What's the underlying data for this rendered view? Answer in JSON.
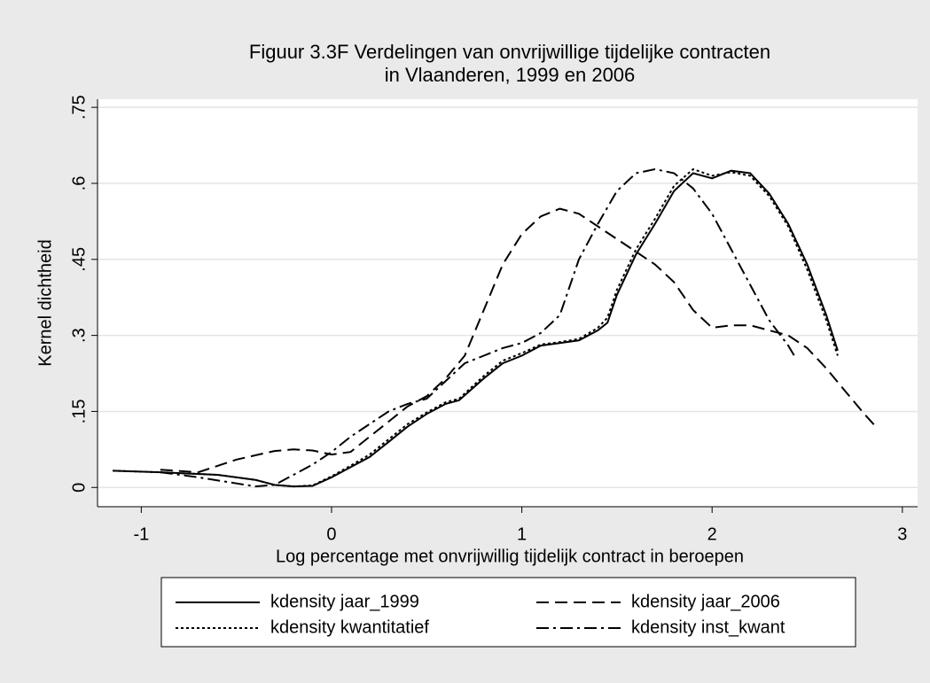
{
  "chart_data": {
    "type": "line",
    "title": [
      "Figuur 3.3F Verdelingen van onvrijwillige tijdelijke contracten",
      "in Vlaanderen, 1999 en 2006"
    ],
    "xlabel": "Log percentage met onvrijwillig tijdelijk contract in beroepen",
    "ylabel": "Kernel dichtheid",
    "xlim": [
      -1.23,
      3.08
    ],
    "xticks": [
      -1,
      0,
      1,
      2,
      3
    ],
    "ylim": [
      -0.038,
      0.766
    ],
    "yticks": [
      0,
      {
        "value": 0.15,
        "label": ".15"
      },
      {
        "value": 0.3,
        "label": ".3"
      },
      {
        "value": 0.45,
        "label": ".45"
      },
      {
        "value": 0.6,
        "label": ".6"
      },
      {
        "value": 0.75,
        "label": ".75"
      }
    ],
    "grid": true,
    "legend": "bottom",
    "series": [
      {
        "name": "kdensity jaar_1999",
        "color": "#000000",
        "dash": "solid",
        "x": [
          -1.15,
          -0.9,
          -0.6,
          -0.4,
          -0.3,
          -0.2,
          -0.1,
          0,
          0.1,
          0.2,
          0.3,
          0.4,
          0.5,
          0.6,
          0.67,
          0.8,
          0.9,
          1.0,
          1.1,
          1.2,
          1.3,
          1.4,
          1.45,
          1.5,
          1.6,
          1.7,
          1.8,
          1.9,
          2.0,
          2.1,
          2.2,
          2.3,
          2.4,
          2.5,
          2.6,
          2.66
        ],
        "values": [
          0.033,
          0.03,
          0.025,
          0.015,
          0.005,
          0.002,
          0.003,
          0.02,
          0.04,
          0.06,
          0.09,
          0.12,
          0.145,
          0.165,
          0.172,
          0.215,
          0.245,
          0.26,
          0.28,
          0.285,
          0.29,
          0.31,
          0.325,
          0.38,
          0.46,
          0.52,
          0.585,
          0.62,
          0.61,
          0.625,
          0.62,
          0.58,
          0.52,
          0.44,
          0.34,
          0.27
        ]
      },
      {
        "name": "kdensity jaar_2006",
        "color": "#000000",
        "dash": "dashed",
        "x": [
          -0.9,
          -0.7,
          -0.5,
          -0.3,
          -0.2,
          -0.1,
          0,
          0.1,
          0.2,
          0.3,
          0.4,
          0.5,
          0.6,
          0.7,
          0.8,
          0.9,
          1.0,
          1.1,
          1.2,
          1.3,
          1.4,
          1.5,
          1.6,
          1.7,
          1.8,
          1.9,
          2.0,
          2.1,
          2.2,
          2.3,
          2.4,
          2.5,
          2.6,
          2.7,
          2.8,
          2.86
        ],
        "values": [
          0.035,
          0.03,
          0.055,
          0.072,
          0.075,
          0.073,
          0.065,
          0.07,
          0.1,
          0.13,
          0.16,
          0.18,
          0.215,
          0.26,
          0.35,
          0.44,
          0.5,
          0.535,
          0.55,
          0.54,
          0.515,
          0.49,
          0.465,
          0.44,
          0.405,
          0.35,
          0.315,
          0.32,
          0.32,
          0.31,
          0.3,
          0.275,
          0.235,
          0.19,
          0.145,
          0.12
        ]
      },
      {
        "name": "kdensity kwantitatief",
        "color": "#000000",
        "dash": "dotted",
        "x": [
          -1.15,
          -0.9,
          -0.6,
          -0.4,
          -0.3,
          -0.2,
          -0.1,
          0,
          0.1,
          0.2,
          0.3,
          0.4,
          0.5,
          0.6,
          0.67,
          0.8,
          0.9,
          1.0,
          1.1,
          1.2,
          1.3,
          1.4,
          1.45,
          1.5,
          1.6,
          1.7,
          1.8,
          1.9,
          2.0,
          2.1,
          2.2,
          2.3,
          2.4,
          2.5,
          2.6,
          2.66
        ],
        "values": [
          0.033,
          0.03,
          0.025,
          0.015,
          0.005,
          0.002,
          0.004,
          0.022,
          0.043,
          0.065,
          0.095,
          0.125,
          0.148,
          0.168,
          0.175,
          0.22,
          0.25,
          0.265,
          0.282,
          0.287,
          0.293,
          0.315,
          0.335,
          0.39,
          0.47,
          0.53,
          0.595,
          0.628,
          0.615,
          0.622,
          0.615,
          0.575,
          0.515,
          0.43,
          0.33,
          0.26
        ]
      },
      {
        "name": "kdensity inst_kwant",
        "color": "#000000",
        "dash": "dashdot",
        "x": [
          -0.9,
          -0.7,
          -0.5,
          -0.4,
          -0.3,
          -0.2,
          -0.1,
          0,
          0.1,
          0.2,
          0.3,
          0.4,
          0.5,
          0.6,
          0.7,
          0.8,
          0.9,
          1.0,
          1.1,
          1.2,
          1.3,
          1.4,
          1.5,
          1.6,
          1.7,
          1.8,
          1.9,
          2.0,
          2.1,
          2.2,
          2.3,
          2.4,
          2.44
        ],
        "values": [
          0.03,
          0.02,
          0.008,
          0.002,
          0.005,
          0.025,
          0.045,
          0.07,
          0.1,
          0.125,
          0.15,
          0.165,
          0.175,
          0.21,
          0.245,
          0.26,
          0.275,
          0.285,
          0.305,
          0.34,
          0.45,
          0.52,
          0.585,
          0.62,
          0.628,
          0.62,
          0.59,
          0.54,
          0.47,
          0.4,
          0.33,
          0.28,
          0.255
        ]
      }
    ]
  }
}
